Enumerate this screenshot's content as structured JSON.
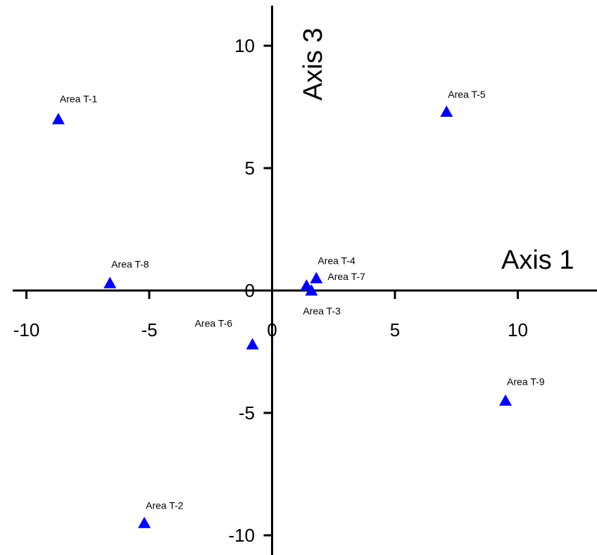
{
  "chart_data": {
    "type": "scatter",
    "xlabel": "Axis 1",
    "ylabel": "Axis 3",
    "xlim": [
      -10.5,
      13.5
    ],
    "ylim": [
      -10.5,
      11.5
    ],
    "xticks": [
      -10,
      -5,
      0,
      5,
      10
    ],
    "yticks": [
      -10,
      -5,
      0,
      5,
      10
    ],
    "grid": false,
    "marker": "triangle",
    "marker_color": "#0000ff",
    "points": [
      {
        "label": "Area T-1",
        "x": -8.7,
        "y": 7.0
      },
      {
        "label": "Area T-2",
        "x": -5.2,
        "y": -9.5
      },
      {
        "label": "Area T-3",
        "x": 1.6,
        "y": 0.0
      },
      {
        "label": "Area T-4",
        "x": 1.8,
        "y": 0.5
      },
      {
        "label": "Area T-5",
        "x": 7.1,
        "y": 7.3
      },
      {
        "label": "Area T-6",
        "x": -0.8,
        "y": -2.2
      },
      {
        "label": "Area T-7",
        "x": 1.4,
        "y": 0.2
      },
      {
        "label": "Area T-8",
        "x": -6.6,
        "y": 0.3
      },
      {
        "label": "Area T-9",
        "x": 9.5,
        "y": -4.5
      }
    ]
  }
}
